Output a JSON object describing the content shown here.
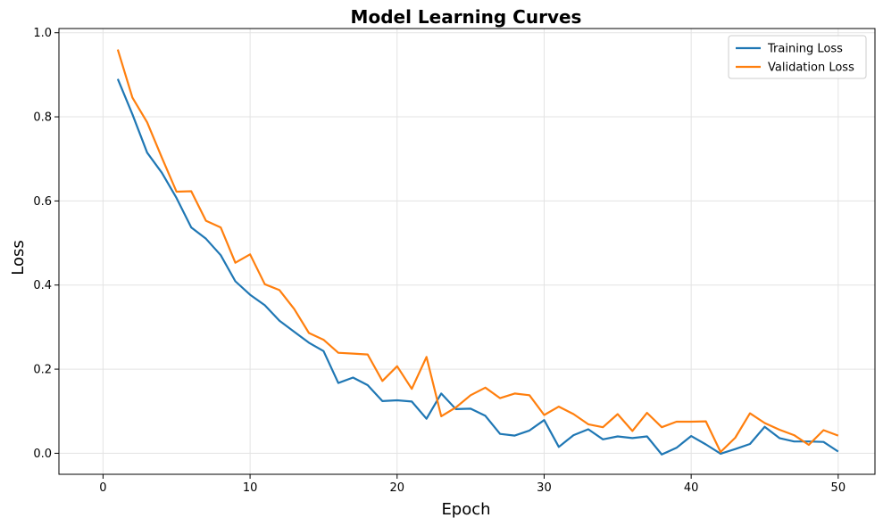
{
  "chart_data": {
    "type": "line",
    "title": "Model Learning Curves",
    "xlabel": "Epoch",
    "ylabel": "Loss",
    "xlim": [
      -3,
      52.5
    ],
    "ylim": [
      -0.05,
      1.01
    ],
    "xticks": [
      0,
      10,
      20,
      30,
      40,
      50
    ],
    "yticks": [
      0.0,
      0.2,
      0.4,
      0.6,
      0.8,
      1.0
    ],
    "xtick_labels": [
      "0",
      "10",
      "20",
      "30",
      "40",
      "50"
    ],
    "ytick_labels": [
      "0.0",
      "0.2",
      "0.4",
      "0.6",
      "0.8",
      "1.0"
    ],
    "grid": true,
    "legend_position": "top-right",
    "x": [
      1,
      2,
      3,
      4,
      5,
      6,
      7,
      8,
      9,
      10,
      11,
      12,
      13,
      14,
      15,
      16,
      17,
      18,
      19,
      20,
      21,
      22,
      23,
      24,
      25,
      26,
      27,
      28,
      29,
      30,
      31,
      32,
      33,
      34,
      35,
      36,
      37,
      38,
      39,
      40,
      41,
      42,
      43,
      44,
      45,
      46,
      47,
      48,
      49,
      50
    ],
    "series": [
      {
        "name": "Training Loss",
        "color": "#1f77b4",
        "values": [
          0.89,
          0.806,
          0.715,
          0.667,
          0.607,
          0.537,
          0.51,
          0.471,
          0.409,
          0.377,
          0.352,
          0.315,
          0.289,
          0.263,
          0.243,
          0.167,
          0.18,
          0.162,
          0.124,
          0.126,
          0.123,
          0.082,
          0.142,
          0.105,
          0.106,
          0.089,
          0.046,
          0.042,
          0.054,
          0.079,
          0.015,
          0.043,
          0.057,
          0.033,
          0.04,
          0.036,
          0.04,
          -0.003,
          0.013,
          0.041,
          0.021,
          -0.001,
          0.01,
          0.022,
          0.063,
          0.036,
          0.028,
          0.028,
          0.027,
          0.004
        ]
      },
      {
        "name": "Validation Loss",
        "color": "#ff7f0e",
        "values": [
          0.96,
          0.846,
          0.787,
          0.703,
          0.622,
          0.623,
          0.553,
          0.537,
          0.453,
          0.473,
          0.402,
          0.388,
          0.343,
          0.286,
          0.27,
          0.239,
          0.237,
          0.235,
          0.172,
          0.207,
          0.153,
          0.229,
          0.088,
          0.109,
          0.138,
          0.156,
          0.131,
          0.142,
          0.138,
          0.091,
          0.111,
          0.093,
          0.069,
          0.062,
          0.093,
          0.053,
          0.096,
          0.062,
          0.075,
          0.075,
          0.076,
          0.003,
          0.037,
          0.095,
          0.072,
          0.056,
          0.043,
          0.02,
          0.055,
          0.042
        ]
      }
    ]
  }
}
